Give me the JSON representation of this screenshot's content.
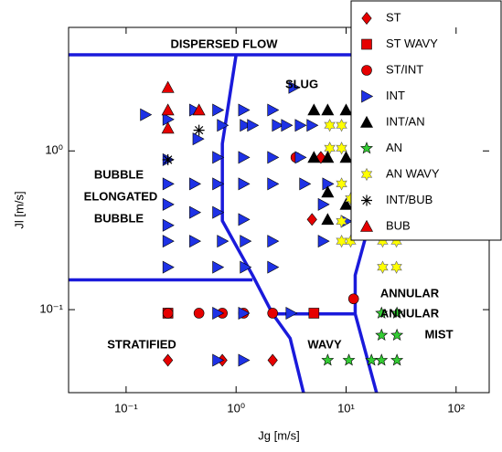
{
  "chart_data": {
    "type": "scatter",
    "xlabel": "Jg [m/s]",
    "ylabel": "Jl [m/s]",
    "log_x": true,
    "log_y": true,
    "xlim": [
      0.03,
      200
    ],
    "ylim": [
      0.03,
      6
    ],
    "xticks": [
      {
        "value": 0.1,
        "label": "10⁻¹"
      },
      {
        "value": 1,
        "label": "10⁰"
      },
      {
        "value": 10,
        "label": "10¹"
      },
      {
        "value": 100,
        "label": "10²"
      }
    ],
    "yticks": [
      {
        "value": 0.1,
        "label": "10⁻¹"
      },
      {
        "value": 1,
        "label": "10⁰"
      }
    ],
    "legend": "upper right",
    "boundary_color": "#1a1adb",
    "boundaries": [
      {
        "x": [
          0.03,
          200
        ],
        "y": [
          4.03,
          4.03
        ]
      },
      {
        "x": [
          1.0,
          0.75,
          0.75,
          1.41,
          2.15,
          3.1,
          4.1
        ],
        "y": [
          4.03,
          1.11,
          0.363,
          0.165,
          0.094,
          0.066,
          0.03
        ]
      },
      {
        "x": [
          0.03,
          1.41
        ],
        "y": [
          0.154,
          0.154
        ]
      },
      {
        "x": [
          2.15,
          12.1
        ],
        "y": [
          0.094,
          0.094
        ]
      },
      {
        "x": [
          18,
          12.1,
          12.1,
          18.9
        ],
        "y": [
          0.45,
          0.165,
          0.094,
          0.03
        ]
      }
    ],
    "annotations": [
      "DISPERSED FLOW",
      "SLUG",
      "BUBBLE",
      "ELONGATED",
      "BUBBLE",
      "STRATIFIED",
      "WAVY",
      "ANNULAR",
      "ANNULAR",
      "MIST"
    ],
    "series": [
      {
        "name": "ST",
        "color": "#e60000",
        "marker": "diamond",
        "x": [
          0.24,
          0.75,
          2.15,
          5.9,
          4.9
        ],
        "y": [
          0.048,
          0.048,
          0.048,
          0.91,
          0.37
        ]
      },
      {
        "name": "ST WAVY",
        "color": "#e60000",
        "marker": "square",
        "x": [
          0.24,
          5.1
        ],
        "y": [
          0.095,
          0.095
        ]
      },
      {
        "name": "ST/INT",
        "color": "#e60000",
        "marker": "circle",
        "x": [
          0.24,
          0.46,
          0.75,
          1.17,
          2.15,
          3.5,
          11.7
        ],
        "y": [
          0.095,
          0.095,
          0.095,
          0.095,
          0.095,
          0.91,
          0.117
        ]
      },
      {
        "name": "INT",
        "color": "#1e32e6",
        "marker": "triangle-right",
        "x": [
          0.15,
          0.24,
          0.24,
          0.42,
          0.45,
          0.68,
          0.75,
          1.17,
          1.21,
          1.41,
          2.15,
          2.37,
          2.87,
          0.68,
          1.17,
          2.15,
          3.83,
          0.24,
          0.42,
          0.68,
          1.17,
          2.15,
          0.24,
          0.24,
          0.42,
          0.68,
          1.17,
          0.24,
          0.42,
          0.75,
          1.21,
          2.15,
          0.24,
          0.68,
          1.21,
          2.15,
          0.68,
          1.17,
          3.16,
          0.68,
          1.17,
          3.35,
          4.9,
          3.83,
          6.8,
          4.2,
          6.2,
          6.2,
          10
        ],
        "y": [
          1.69,
          1.58,
          0.88,
          1.81,
          1.19,
          1.81,
          1.45,
          1.81,
          1.45,
          1.45,
          1.81,
          1.45,
          1.45,
          0.91,
          0.91,
          0.91,
          0.91,
          0.62,
          0.62,
          0.62,
          0.62,
          0.62,
          0.46,
          0.34,
          0.41,
          0.41,
          0.37,
          0.27,
          0.27,
          0.27,
          0.27,
          0.27,
          0.185,
          0.185,
          0.185,
          0.185,
          0.095,
          0.095,
          0.095,
          0.048,
          0.048,
          2.51,
          1.45,
          1.45,
          0.62,
          0.62,
          0.46,
          0.27,
          0.36
        ]
      },
      {
        "name": "INT/AN",
        "color": "#000000",
        "marker": "triangle-up",
        "x": [
          5.1,
          6.8,
          10,
          5.1,
          6.8,
          10,
          6.8,
          6.8,
          10
        ],
        "y": [
          1.81,
          1.81,
          1.81,
          0.91,
          0.91,
          0.91,
          0.55,
          0.37,
          0.46
        ]
      },
      {
        "name": "AN",
        "color": "#33cc33",
        "marker": "star5",
        "x": [
          6.8,
          10.6,
          17,
          21,
          29,
          21,
          29,
          21,
          29
        ],
        "y": [
          0.048,
          0.048,
          0.048,
          0.048,
          0.048,
          0.069,
          0.069,
          0.095,
          0.095
        ]
      },
      {
        "name": "AN WAVY",
        "color": "#ffff00",
        "marker": "star6",
        "x": [
          7.1,
          9.1,
          7.1,
          9.1,
          9.1,
          11,
          9.1,
          9.1,
          11,
          21.5,
          28.7,
          21.5,
          28.7
        ],
        "y": [
          1.45,
          1.45,
          1.04,
          1.04,
          0.62,
          0.5,
          0.36,
          0.27,
          0.27,
          0.27,
          0.27,
          0.185,
          0.185
        ]
      },
      {
        "name": "INT/BUB",
        "color": "#000000",
        "marker": "asterisk",
        "x": [
          0.46,
          0.24
        ],
        "y": [
          1.35,
          0.88
        ]
      },
      {
        "name": "BUB",
        "color": "#e60000",
        "marker": "triangle-up",
        "x": [
          0.24,
          0.24,
          0.46,
          0.24
        ],
        "y": [
          2.51,
          1.81,
          1.81,
          1.39
        ]
      }
    ]
  }
}
